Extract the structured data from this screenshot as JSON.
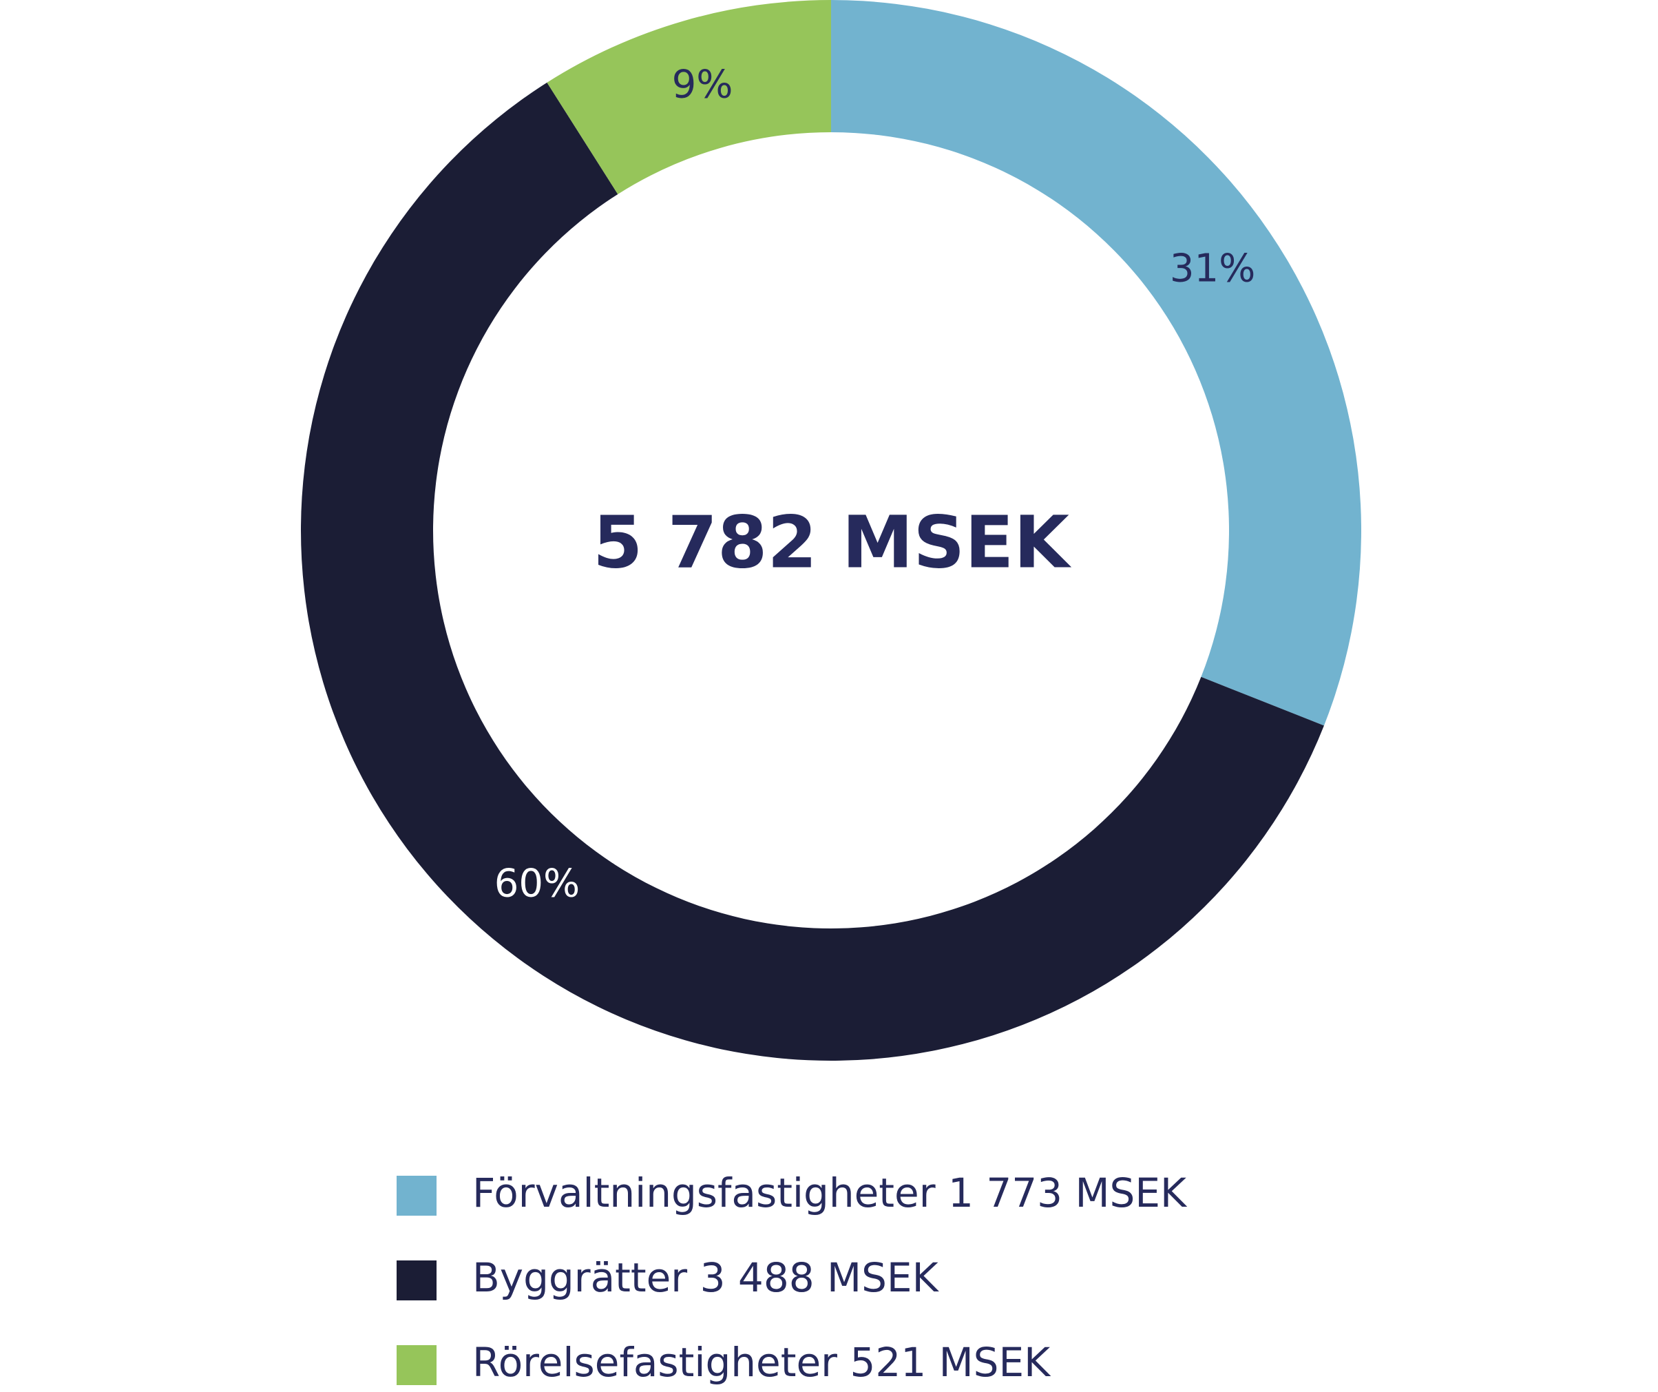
{
  "chart_data": {
    "type": "donut",
    "center_label": "5 782 MSEK",
    "categories": [
      "Förvaltningsfastigheter 1 773 MSEK",
      "Byggrätter 3 488 MSEK",
      "Rörelsefastigheter 521 MSEK"
    ],
    "values": [
      31,
      60,
      9
    ],
    "value_labels": [
      "31%",
      "60%",
      "9%"
    ],
    "colors": [
      "#72b3cf",
      "#1b1d35",
      "#96c55a"
    ]
  }
}
